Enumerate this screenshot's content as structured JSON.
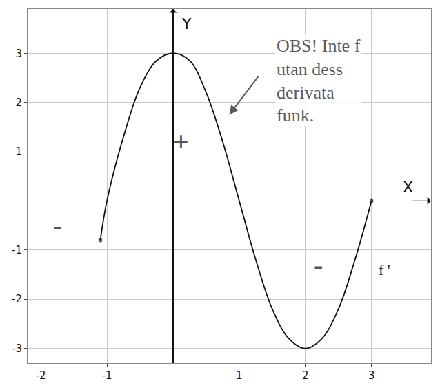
{
  "chart_data": {
    "type": "line",
    "xlabel": "X",
    "ylabel": "Y",
    "x": [
      -1.1,
      -1.0,
      -0.75,
      -0.5,
      -0.25,
      0,
      0.25,
      0.5,
      0.75,
      1,
      1.25,
      1.5,
      1.75,
      2,
      2.25,
      2.5,
      2.75,
      3
    ],
    "values": [
      -0.8,
      0,
      1.3,
      2.3,
      2.85,
      3,
      2.85,
      2.2,
      1.2,
      0,
      -1.2,
      -2.2,
      -2.8,
      -3,
      -2.8,
      -2.2,
      -1.2,
      0
    ],
    "color": "#111111",
    "xlim": [
      -2.2,
      3.9
    ],
    "ylim": [
      -3.3,
      3.9
    ],
    "xticks": [
      -2,
      -1,
      1,
      2,
      3
    ],
    "yticks": [
      -3,
      -2,
      -1,
      1,
      2,
      3
    ],
    "grid": true,
    "annotations": [
      {
        "lines": [
          "OBS! Inte f",
          "utan dess",
          "derivata",
          "funk."
        ],
        "x": 2.2,
        "y": 2.45
      },
      {
        "text": "+",
        "x": 0.12,
        "y": 1.2
      },
      {
        "text": "-",
        "x": -1.75,
        "y": -0.5
      },
      {
        "text": "-",
        "x": 2.2,
        "y": -1.3
      },
      {
        "text": "f '",
        "x": 3.2,
        "y": -1.4
      }
    ]
  }
}
